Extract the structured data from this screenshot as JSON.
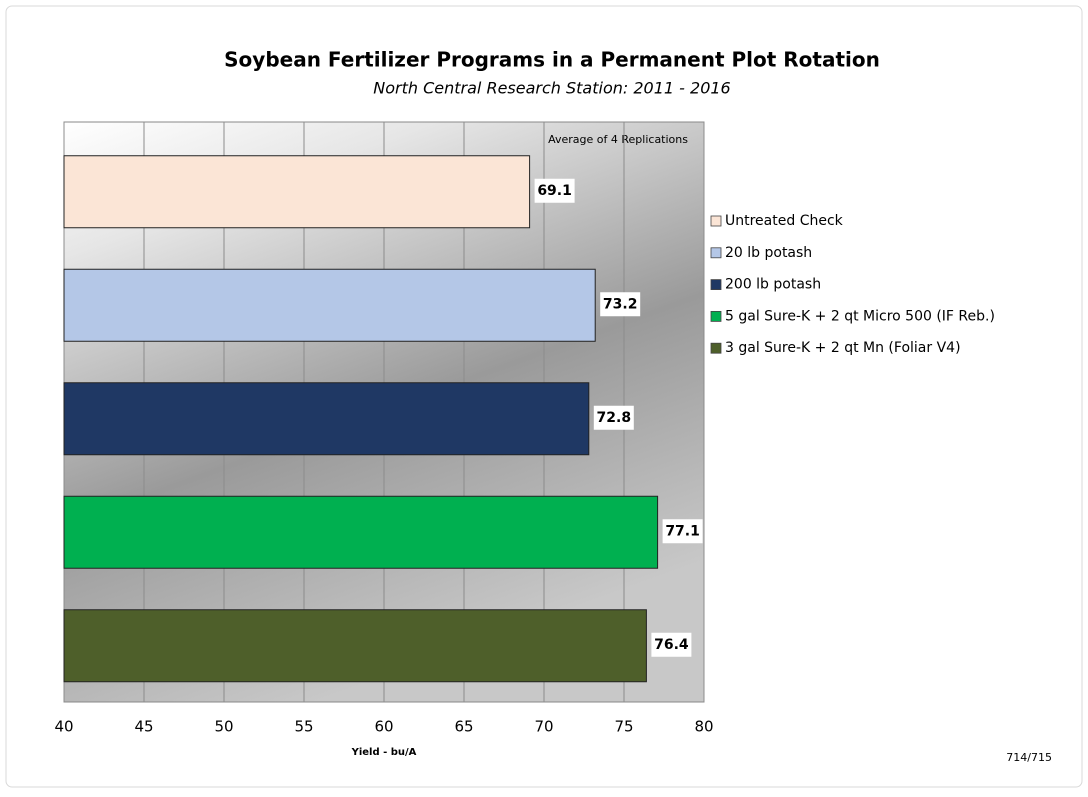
{
  "chart_data": {
    "type": "bar",
    "orientation": "horizontal",
    "title": "Soybean Fertilizer Programs in a Permanent Plot Rotation",
    "subtitle": "North Central Research Station: 2011 - 2016",
    "annotation": "Average of 4 Replications",
    "x_label": "Yield - bu/A",
    "page_number": "714/715",
    "categories": [
      "Untreated Check",
      "20 lb potash",
      "200 lb potash",
      "5 gal Sure-K + 2 qt Micro 500 (IF Reb.)",
      "3 gal Sure-K + 2 qt Mn (Foliar V4)"
    ],
    "values": [
      69.1,
      73.2,
      72.8,
      77.1,
      76.4
    ],
    "colors": [
      "#fbe5d6",
      "#b4c7e7",
      "#1f3864",
      "#00b050",
      "#4e5f2a"
    ],
    "xlim": [
      40,
      80
    ],
    "xticks": [
      40,
      45,
      50,
      55,
      60,
      65,
      70,
      75,
      80
    ],
    "grid": true
  }
}
